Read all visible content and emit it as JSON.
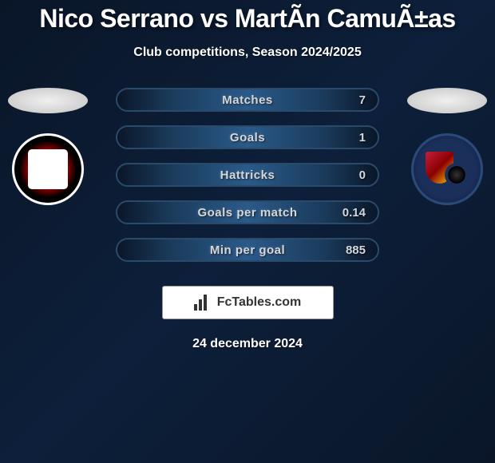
{
  "header": {
    "title": "Nico Serrano vs MartÃ­n CamuÃ±as",
    "subtitle": "Club competitions, Season 2024/2025"
  },
  "stats": [
    {
      "label": "Matches",
      "right_value": "7"
    },
    {
      "label": "Goals",
      "right_value": "1"
    },
    {
      "label": "Hattricks",
      "right_value": "0"
    },
    {
      "label": "Goals per match",
      "right_value": "0.14"
    },
    {
      "label": "Min per goal",
      "right_value": "885"
    }
  ],
  "branding": {
    "site_name": "FcTables.com"
  },
  "footer": {
    "date": "24 december 2024"
  },
  "colors": {
    "background_dark": "#0a1628",
    "background_mid": "#0d1f3a",
    "stat_bar_light": "#2a5a8a",
    "stat_bar_dark": "#1a3a5a",
    "text_primary": "#ffffff",
    "text_stat": "#d0d8e0"
  }
}
